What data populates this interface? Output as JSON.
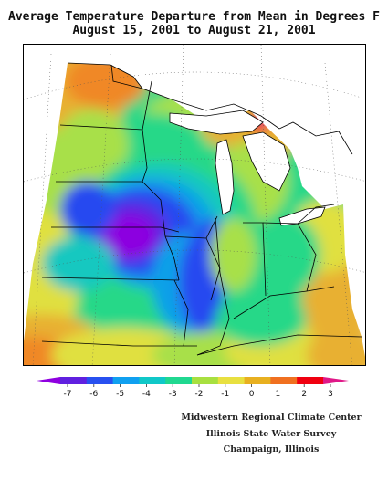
{
  "title": {
    "line1": "Average Temperature Departure from Mean in Degrees F",
    "line2": "August 15, 2001  to  August 21, 2001"
  },
  "legend": {
    "ticks": [
      "-7",
      "-6",
      "-5",
      "-4",
      "-3",
      "-2",
      "-1",
      "0",
      "1",
      "2",
      "3"
    ],
    "colors": [
      "#8f00e0",
      "#6020e0",
      "#2850f0",
      "#10a0f0",
      "#10c8c8",
      "#20d890",
      "#a8e040",
      "#e8e040",
      "#e8b020",
      "#f07020",
      "#f00010",
      "#e01888"
    ]
  },
  "credits": {
    "line1": "Midwestern Regional Climate Center",
    "line2": "Illinois State Water Survey",
    "line3": "Champaign, Illinois"
  },
  "map_colors": {
    "orange": "#f08828",
    "amber": "#e8b030",
    "yellow": "#e0e040",
    "lime": "#a8e048",
    "green": "#28d888",
    "teal": "#18c8c0",
    "lightblue": "#10a0e8",
    "blue": "#2848f0",
    "indigo": "#6020e0",
    "violet": "#8c00e0",
    "red": "#f01010",
    "magenta": "#e00888"
  }
}
